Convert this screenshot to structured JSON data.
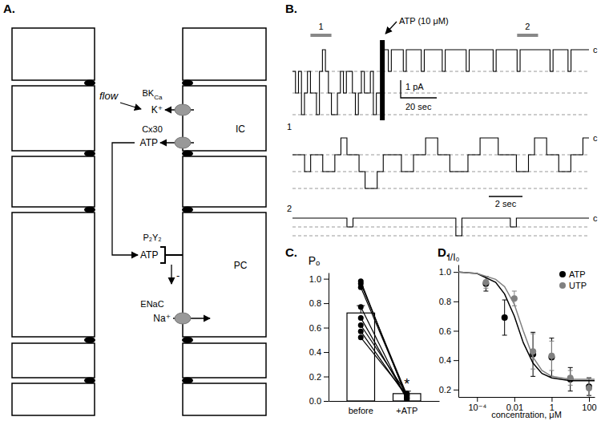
{
  "panels": {
    "A": "A.",
    "B": "B.",
    "C": "C.",
    "D": "D."
  },
  "diagram": {
    "labels": {
      "bk": {
        "text": "BK",
        "sub": "Ca"
      },
      "flow": "flow",
      "k": "K⁺",
      "ic": "IC",
      "cx30": "Cx30",
      "atp_ic": "ATP",
      "p2y2": "P₂Y₂",
      "atp_pc": "ATP",
      "pc": "PC",
      "minus": "-",
      "enac": "ENaC",
      "na": "Na⁺"
    }
  },
  "traces": {
    "application_label": "ATP (10 μM)",
    "segment_labels": [
      "1",
      "2"
    ],
    "closed_label": "c",
    "scale_current": "1 pA",
    "scale_time_long": "20 sec",
    "scale_time_short": "2 sec",
    "segment_windows": [
      [
        6,
        13
      ],
      [
        75,
        82
      ]
    ],
    "overview": {
      "n_levels": 3,
      "atp_at": 30,
      "levels": [
        1,
        2,
        1,
        3,
        2,
        1,
        2,
        2,
        3,
        1,
        0,
        1,
        2,
        3,
        3,
        2,
        1,
        2,
        1,
        1,
        2,
        3,
        2,
        1,
        2,
        2,
        1,
        3,
        2,
        2,
        0,
        0,
        1,
        0,
        0,
        0,
        0,
        1,
        0,
        0,
        0,
        0,
        0,
        1,
        0,
        0,
        0,
        0,
        0,
        0,
        1,
        0,
        0,
        0,
        0,
        0,
        0,
        0,
        1,
        0,
        0,
        0,
        0,
        0,
        0,
        0,
        0,
        1,
        0,
        0,
        0,
        0,
        0,
        0,
        0,
        1,
        0,
        0,
        0,
        0,
        0,
        0,
        0,
        0,
        0,
        0,
        1,
        0,
        0,
        0,
        0,
        0,
        1,
        0,
        0,
        0,
        0,
        0,
        0,
        0
      ]
    },
    "segment_1": {
      "n_levels": 3,
      "levels": [
        1,
        1,
        2,
        1,
        1,
        2,
        2,
        1,
        0,
        1,
        1,
        2,
        3,
        3,
        2,
        1,
        1,
        1,
        2,
        2,
        1,
        1,
        0,
        0,
        1,
        1,
        2,
        2,
        2,
        1,
        1,
        0,
        0,
        0,
        1,
        1,
        1,
        2,
        2,
        1,
        0,
        0,
        1,
        1,
        2,
        2,
        1,
        1,
        0,
        0
      ]
    },
    "segment_2": {
      "n_levels": 2,
      "levels": [
        0,
        0,
        0,
        0,
        0,
        0,
        0,
        0,
        0,
        1,
        0,
        0,
        0,
        0,
        0,
        0,
        0,
        0,
        0,
        0,
        0,
        0,
        0,
        0,
        0,
        0,
        0,
        2,
        0,
        0,
        0,
        0,
        0,
        0,
        0,
        0,
        1,
        0,
        0,
        0,
        0,
        0,
        0,
        0,
        0,
        0,
        0,
        0,
        0,
        0
      ]
    }
  },
  "chart_data": [
    {
      "type": "bar",
      "ylabel": "Pₒ",
      "categories": [
        "before",
        "+ATP"
      ],
      "values": [
        0.72,
        0.06
      ],
      "errors": [
        0.06,
        0.02
      ],
      "color": "#ffffff",
      "ylim": [
        0,
        1.05
      ],
      "yticks": [
        {
          "value": 0,
          "label": "0.0"
        },
        0.2,
        0.4,
        0.6,
        0.8,
        {
          "value": 1,
          "label": "1.0"
        }
      ],
      "paired_points": [
        [
          0.98,
          0.02
        ],
        [
          0.96,
          0.05
        ],
        [
          0.93,
          0.04
        ],
        [
          0.77,
          0.01
        ],
        [
          0.68,
          0.02
        ],
        [
          0.62,
          0.06
        ],
        [
          0.57,
          0.03
        ],
        [
          0.52,
          0.05
        ]
      ],
      "annotations": [
        {
          "text": "*",
          "category": 1
        }
      ]
    },
    {
      "type": "scatter",
      "log": "x",
      "xlabel": "concentration, μM",
      "ylabel": "I/I₀",
      "xlim": [
        1e-05,
        200
      ],
      "ylim": [
        0.15,
        1.05
      ],
      "xticks": [
        {
          "value": 0.0001,
          "label": "10⁻⁴"
        },
        0.01,
        1,
        100
      ],
      "yticks": [
        0.2,
        0.4,
        0.6,
        0.8,
        {
          "value": 1,
          "label": "1.0"
        }
      ],
      "legend": "upper right",
      "series": [
        {
          "name": "ATP",
          "color": "#000000",
          "type": "scatter",
          "marker": "circle",
          "x": [
            0.0003,
            0.003,
            0.1,
            1,
            10,
            100
          ],
          "values": [
            0.92,
            0.69,
            0.44,
            0.42,
            0.27,
            0.22
          ],
          "errors": [
            0.05,
            0.12,
            0.15,
            0.13,
            0.08,
            0.06
          ]
        },
        {
          "name": "UTP",
          "color": "#808080",
          "type": "scatter",
          "marker": "circle",
          "x": [
            0.0003,
            0.01,
            0.1,
            1,
            10,
            100
          ],
          "values": [
            0.93,
            0.82,
            0.46,
            0.43,
            0.28,
            0.21
          ],
          "errors": [
            0.04,
            0.05,
            0.12,
            0.1,
            0.05,
            0.07
          ]
        },
        {
          "color": "#000000",
          "type": "line",
          "x": [
            1e-05,
            0.0001,
            0.001,
            0.003,
            0.01,
            0.03,
            0.1,
            0.3,
            1,
            10,
            100,
            200
          ],
          "values": [
            1.0,
            0.99,
            0.93,
            0.85,
            0.7,
            0.52,
            0.38,
            0.31,
            0.28,
            0.26,
            0.26,
            0.26
          ]
        },
        {
          "color": "#808080",
          "type": "line",
          "x": [
            1e-05,
            0.0001,
            0.001,
            0.003,
            0.01,
            0.03,
            0.1,
            0.3,
            1,
            10,
            100,
            200
          ],
          "values": [
            1.0,
            0.99,
            0.95,
            0.9,
            0.78,
            0.6,
            0.42,
            0.33,
            0.29,
            0.27,
            0.27,
            0.27
          ]
        }
      ]
    }
  ]
}
